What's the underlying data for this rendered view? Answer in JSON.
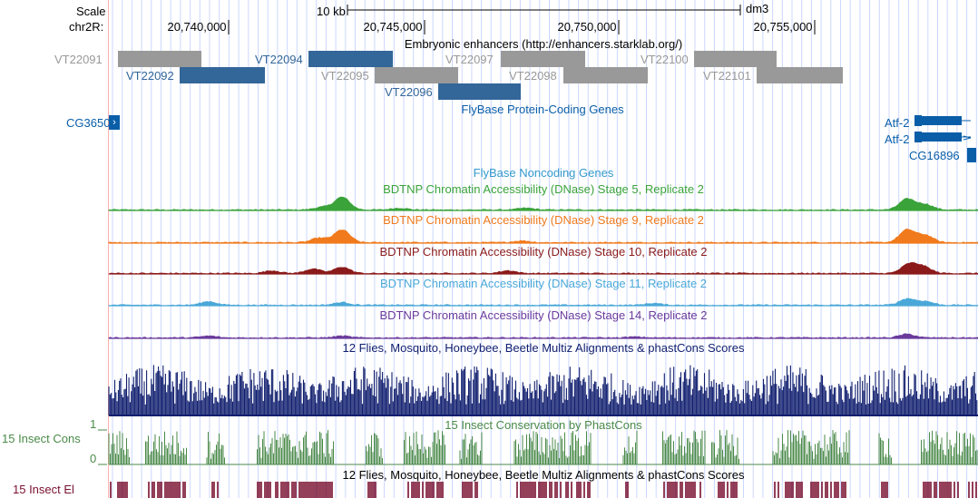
{
  "header": {
    "scale_label": "Scale",
    "scale_bar_label": "10 kb",
    "assembly": "dm3",
    "chrom_label": "chr2R:",
    "positions": [
      "20,740,000",
      "20,745,000",
      "20,750,000",
      "20,755,000"
    ]
  },
  "colors": {
    "enhancer_gray": "#999999",
    "enhancer_blue": "#336699",
    "gene_blue": "#0a5ea8",
    "dnase5": "#3aa33a",
    "dnase9": "#f07a1c",
    "dnase10": "#8b1a1a",
    "dnase11": "#4aa8d8",
    "dnase14": "#6a3b9c",
    "multiz": "#101e6e",
    "phastcons": "#4a8a48",
    "elements": "#7a1030",
    "grid": "#ccd7ff",
    "left_border": "#ffb0b0"
  },
  "tracks": {
    "enhancers": {
      "title": "Embryonic enhancers (http://enhancers.starklab.org/)",
      "items": [
        {
          "name": "VT22091",
          "color": "gray"
        },
        {
          "name": "VT22092",
          "color": "blue"
        },
        {
          "name": "VT22094",
          "color": "blue"
        },
        {
          "name": "VT22095",
          "color": "gray"
        },
        {
          "name": "VT22096",
          "color": "blue"
        },
        {
          "name": "VT22097",
          "color": "gray"
        },
        {
          "name": "VT22098",
          "color": "gray"
        },
        {
          "name": "VT22100",
          "color": "gray"
        },
        {
          "name": "VT22101",
          "color": "gray"
        }
      ]
    },
    "coding_genes": {
      "title": "FlyBase Protein-Coding Genes",
      "genes": [
        "CG3650",
        "Atf-2",
        "Atf-2",
        "CG16896"
      ]
    },
    "noncoding": {
      "title": "FlyBase Noncoding Genes"
    },
    "dnase": [
      {
        "key": "dnase5",
        "title": "BDTNP Chromatin Accessibility (DNase) Stage 5, Replicate 2"
      },
      {
        "key": "dnase9",
        "title": "BDTNP Chromatin Accessibility (DNase) Stage 9, Replicate 2"
      },
      {
        "key": "dnase10",
        "title": "BDTNP Chromatin Accessibility (DNase) Stage 10, Replicate 2"
      },
      {
        "key": "dnase11",
        "title": "BDTNP Chromatin Accessibility (DNase) Stage 11, Replicate 2"
      },
      {
        "key": "dnase14",
        "title": "BDTNP Chromatin Accessibility (DNase) Stage 14, Replicate 2"
      }
    ],
    "multiz": {
      "title": "12 Flies, Mosquito, Honeybee, Beetle Multiz Alignments & phastCons Scores"
    },
    "cons": {
      "title": "15 Insect Conservation by PhastCons",
      "left_label": "15 Insect Cons",
      "axis_max": "1",
      "axis_min": "0"
    },
    "elements": {
      "title": "12 Flies, Mosquito, Honeybee, Beetle Multiz Alignments & phastCons Scores",
      "left_label": "15 Insect El"
    }
  }
}
